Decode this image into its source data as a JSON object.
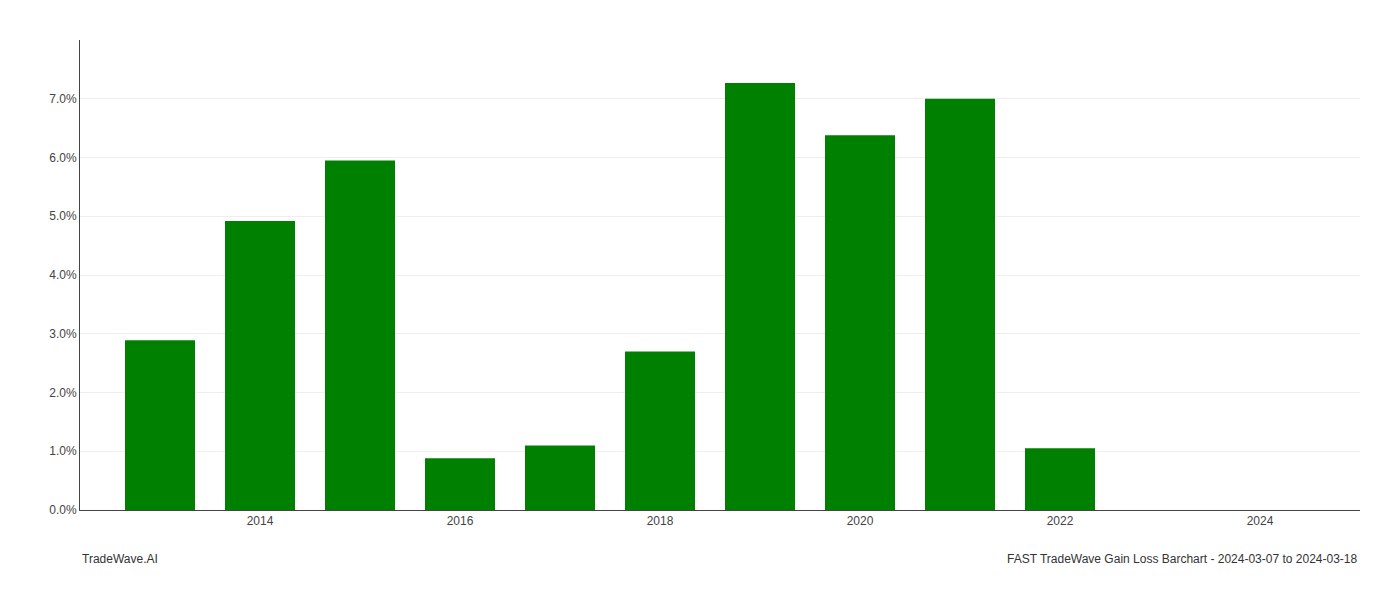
{
  "chart_data": {
    "type": "bar",
    "x": [
      2013,
      2014,
      2015,
      2016,
      2017,
      2018,
      2019,
      2020,
      2021,
      2022,
      2023
    ],
    "values": [
      0.0289,
      0.0492,
      0.0595,
      0.0088,
      0.011,
      0.027,
      0.0727,
      0.0638,
      0.07,
      0.0105,
      0.0
    ],
    "color": "#008000",
    "xlim": [
      2012.2,
      2025.0
    ],
    "xticks": [
      2014,
      2016,
      2018,
      2020,
      2022,
      2024
    ],
    "ylim": [
      0.0,
      0.08
    ],
    "yticks": [
      {
        "value": 0.0,
        "label": "0.0%"
      },
      {
        "value": 0.01,
        "label": "1.0%"
      },
      {
        "value": 0.02,
        "label": "2.0%"
      },
      {
        "value": 0.03,
        "label": "3.0%"
      },
      {
        "value": 0.04,
        "label": "4.0%"
      },
      {
        "value": 0.05,
        "label": "5.0%"
      },
      {
        "value": 0.06,
        "label": "6.0%"
      },
      {
        "value": 0.07,
        "label": "7.0%"
      }
    ],
    "grid": true,
    "annotations": [
      "TradeWave.AI",
      "FAST TradeWave Gain Loss Barchart - 2024-03-07 to 2024-03-18"
    ]
  }
}
